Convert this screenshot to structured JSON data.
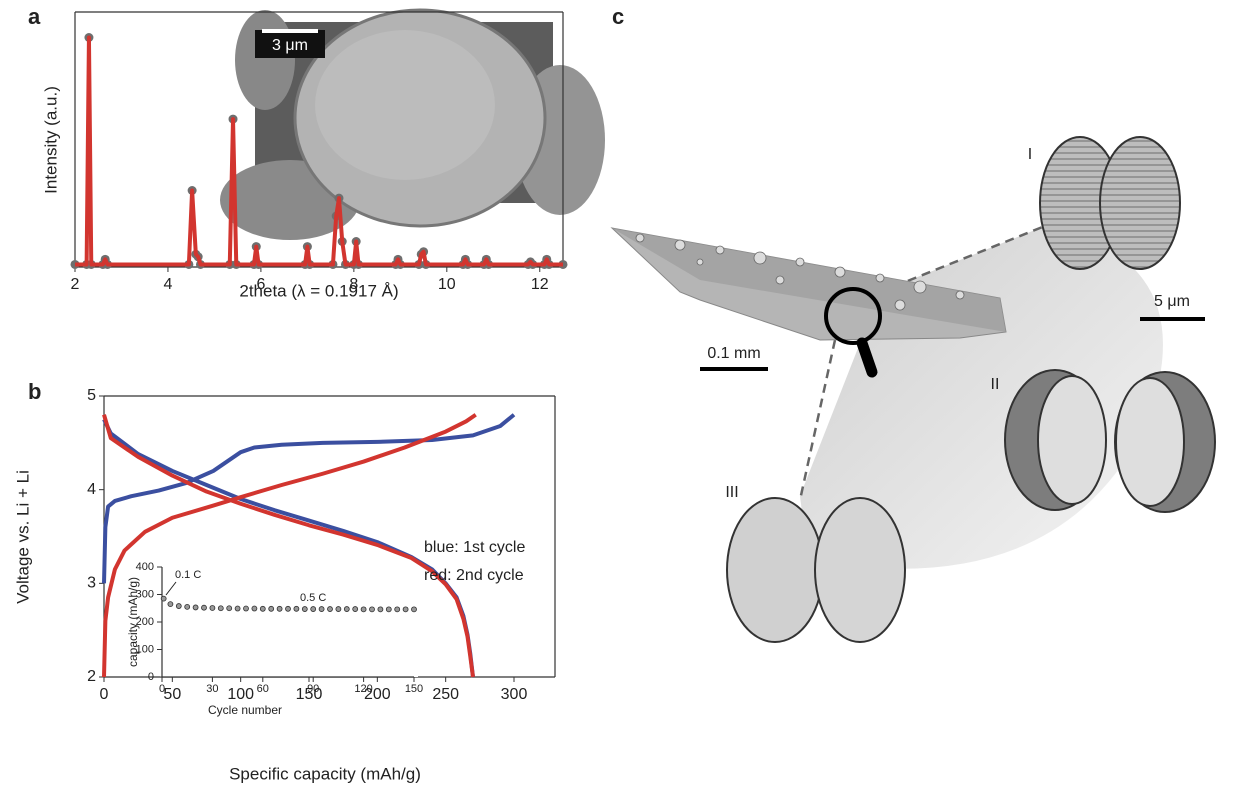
{
  "panel_labels": [
    "a",
    "b",
    "c"
  ],
  "sem_inset": {
    "scale_bar": "3 μm"
  },
  "tomography": {
    "scale_bars": [
      "0.1 mm",
      "5 μm"
    ],
    "particle_labels": [
      "I",
      "II",
      "III"
    ]
  },
  "chart_data": [
    {
      "type": "line",
      "y_label": "Intensity (a.u.)",
      "x_label": "2theta (λ = 0.1917 Å)",
      "x": [
        2.0,
        2.25,
        2.3,
        2.35,
        2.6,
        2.65,
        2.7,
        4.45,
        4.52,
        4.6,
        4.65,
        4.7,
        5.33,
        5.4,
        5.47,
        5.85,
        5.9,
        5.95,
        6.95,
        7.0,
        7.05,
        7.55,
        7.62,
        7.68,
        7.75,
        7.82,
        8.0,
        8.05,
        8.1,
        8.9,
        8.95,
        9.0,
        9.4,
        9.45,
        9.5,
        9.55,
        10.35,
        10.4,
        10.45,
        10.8,
        10.85,
        10.9,
        11.75,
        11.8,
        11.85,
        12.1,
        12.15,
        12.2,
        12.5
      ],
      "series": [
        {
          "color": "#d2352f",
          "marker_color": "#6e6e6e",
          "values": [
            1,
            1,
            90,
            1,
            1,
            3,
            1,
            1,
            30,
            5,
            4,
            1,
            1,
            58,
            1,
            1,
            8,
            1,
            1,
            8,
            1,
            1,
            20,
            27,
            10,
            1,
            1,
            10,
            1,
            1,
            3,
            1,
            1,
            5,
            6,
            1,
            1,
            3,
            1,
            1,
            3,
            1,
            1,
            2,
            1,
            1,
            3,
            1,
            1
          ]
        }
      ],
      "xlim": [
        2,
        12.5
      ],
      "xticks": [
        2,
        4,
        6,
        8,
        10,
        12
      ],
      "ylim": [
        0,
        100
      ]
    },
    {
      "type": "line",
      "x_label": "Specific capacity (mAh/g)",
      "y_label": "Voltage vs. Li + Li",
      "legend": "right",
      "series": [
        {
          "name": "blue: 1st cycle",
          "color": "#3b4fa0",
          "x": [
            0,
            1,
            3,
            8,
            20,
            40,
            60,
            80,
            90,
            100,
            110,
            130,
            160,
            200,
            240,
            270,
            290,
            300,
            null,
            0,
            5,
            25,
            50,
            75,
            100,
            125,
            150,
            175,
            200,
            225,
            240,
            250,
            258,
            263,
            266,
            268,
            270
          ],
          "values": [
            3.0,
            3.6,
            3.82,
            3.88,
            3.93,
            3.99,
            4.07,
            4.2,
            4.3,
            4.4,
            4.45,
            4.48,
            4.5,
            4.51,
            4.53,
            4.58,
            4.68,
            4.8,
            null,
            4.75,
            4.6,
            4.38,
            4.2,
            4.05,
            3.9,
            3.78,
            3.67,
            3.56,
            3.44,
            3.28,
            3.15,
            3.0,
            2.85,
            2.65,
            2.45,
            2.25,
            2.0
          ]
        },
        {
          "name": "red: 2nd cycle",
          "color": "#d2352f",
          "x": [
            0,
            1,
            3,
            8,
            15,
            30,
            50,
            80,
            100,
            130,
            160,
            190,
            220,
            250,
            265,
            272,
            null,
            0,
            5,
            25,
            50,
            75,
            100,
            125,
            150,
            175,
            200,
            225,
            240,
            250,
            258,
            263,
            266,
            268,
            270
          ],
          "values": [
            2.0,
            2.6,
            2.85,
            3.15,
            3.35,
            3.55,
            3.7,
            3.83,
            3.92,
            4.05,
            4.17,
            4.3,
            4.45,
            4.62,
            4.73,
            4.8,
            null,
            4.8,
            4.55,
            4.35,
            4.15,
            3.98,
            3.85,
            3.73,
            3.62,
            3.52,
            3.41,
            3.27,
            3.13,
            2.99,
            2.83,
            2.62,
            2.43,
            2.22,
            2.0
          ]
        }
      ],
      "xlim": [
        0,
        330
      ],
      "xticks": [
        0,
        50,
        100,
        150,
        200,
        250,
        300
      ],
      "ylim": [
        2,
        5
      ],
      "yticks": [
        2,
        3,
        4,
        5
      ]
    },
    {
      "type": "scatter",
      "x_label": "Cycle number",
      "y_label": "capacity (mAh/g)",
      "annotations": [
        "0.1 C",
        "0.5 C"
      ],
      "x": [
        1,
        5,
        10,
        15,
        20,
        25,
        30,
        35,
        40,
        45,
        50,
        55,
        60,
        65,
        70,
        75,
        80,
        85,
        90,
        95,
        100,
        105,
        110,
        115,
        120,
        125,
        130,
        135,
        140,
        145,
        150
      ],
      "series": [
        {
          "color": "#333333",
          "values": [
            285,
            265,
            258,
            255,
            253,
            252,
            251,
            250,
            250,
            249,
            249,
            249,
            248,
            248,
            248,
            248,
            248,
            247,
            247,
            247,
            247,
            247,
            247,
            247,
            246,
            246,
            246,
            246,
            246,
            246,
            246
          ]
        }
      ],
      "xlim": [
        0,
        150
      ],
      "xticks": [
        0,
        30,
        60,
        90,
        120,
        150
      ],
      "ylim": [
        0,
        400
      ],
      "yticks": [
        0,
        100,
        200,
        300,
        400
      ]
    }
  ]
}
